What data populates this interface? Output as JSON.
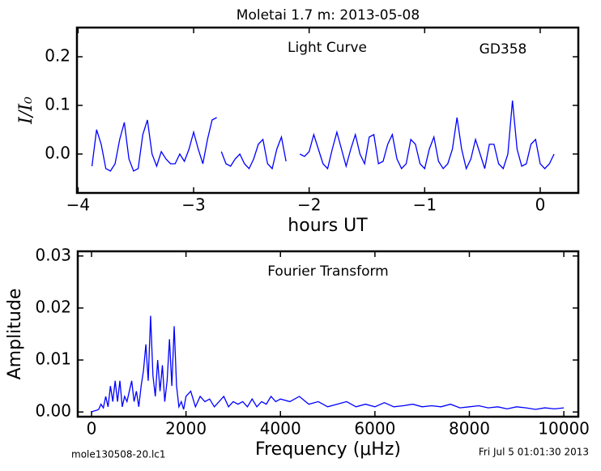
{
  "chart_data": [
    {
      "type": "line",
      "title": "Moletai 1.7 m:  2013-05-08",
      "xlabel": "hours UT",
      "ylabel": "I/I₀",
      "annotations": [
        "Light Curve",
        "GD358"
      ],
      "xlim": [
        -4.01,
        0.33
      ],
      "ylim": [
        -0.08,
        0.26
      ],
      "xticks": [
        {
          "value": -4,
          "label": "−4"
        },
        {
          "value": -3,
          "label": "−3"
        },
        {
          "value": -2,
          "label": "−2"
        },
        {
          "value": -1,
          "label": "−1"
        },
        0
      ],
      "yticks": [
        {
          "value": 0,
          "label": "0.0"
        },
        {
          "value": 0.1,
          "label": "0.1"
        },
        {
          "value": 0.2,
          "label": "0.2"
        }
      ],
      "x": [
        -3.88,
        -3.84,
        -3.8,
        -3.76,
        -3.72,
        -3.68,
        -3.64,
        -3.6,
        -3.56,
        -3.52,
        -3.48,
        -3.44,
        -3.4,
        -3.36,
        -3.32,
        -3.28,
        -3.24,
        -3.2,
        -3.16,
        -3.12,
        -3.08,
        -3.04,
        -3.0,
        -2.96,
        -2.92,
        -2.88,
        -2.84,
        -2.8,
        -2.78,
        -2.76,
        -2.72,
        -2.68,
        -2.64,
        -2.6,
        -2.56,
        -2.52,
        -2.48,
        -2.44,
        -2.4,
        -2.36,
        -2.32,
        -2.28,
        -2.24,
        -2.2,
        -2.16,
        -2.12,
        -2.08,
        -2.04,
        -2.0,
        -1.96,
        -1.92,
        -1.88,
        -1.84,
        -1.8,
        -1.76,
        -1.72,
        -1.68,
        -1.64,
        -1.6,
        -1.56,
        -1.52,
        -1.48,
        -1.44,
        -1.4,
        -1.36,
        -1.32,
        -1.28,
        -1.24,
        -1.2,
        -1.16,
        -1.12,
        -1.08,
        -1.04,
        -1.0,
        -0.96,
        -0.92,
        -0.88,
        -0.84,
        -0.8,
        -0.76,
        -0.72,
        -0.68,
        -0.64,
        -0.6,
        -0.56,
        -0.52,
        -0.48,
        -0.44,
        -0.4,
        -0.36,
        -0.32,
        -0.28,
        -0.24,
        -0.2,
        -0.16,
        -0.12,
        -0.08,
        -0.04,
        0.0,
        0.04,
        0.08,
        0.12
      ],
      "series": [
        {
          "name": "GD358",
          "color": "#0000ff",
          "values": [
            -0.025,
            0.05,
            0.02,
            -0.03,
            -0.035,
            -0.02,
            0.03,
            0.065,
            -0.01,
            -0.035,
            -0.03,
            0.04,
            0.07,
            0.0,
            -0.025,
            0.005,
            -0.01,
            -0.02,
            -0.02,
            0.0,
            -0.015,
            0.01,
            0.045,
            0.01,
            -0.02,
            0.03,
            0.07,
            0.075,
            null,
            0.005,
            -0.02,
            -0.025,
            -0.01,
            0.0,
            -0.02,
            -0.03,
            -0.01,
            0.02,
            0.03,
            -0.02,
            -0.03,
            0.01,
            0.035,
            -0.015,
            null,
            null,
            0.0,
            -0.005,
            0.005,
            0.04,
            0.01,
            -0.02,
            -0.03,
            0.01,
            0.045,
            0.01,
            -0.025,
            0.01,
            0.04,
            0.0,
            -0.02,
            0.035,
            0.04,
            -0.02,
            -0.015,
            0.02,
            0.04,
            -0.01,
            -0.03,
            -0.02,
            0.03,
            0.02,
            -0.02,
            -0.03,
            0.01,
            0.035,
            -0.015,
            -0.03,
            -0.02,
            0.01,
            0.075,
            0.01,
            -0.03,
            -0.01,
            0.03,
            0.0,
            -0.03,
            0.02,
            0.02,
            -0.02,
            -0.03,
            0.0,
            0.11,
            0.01,
            -0.025,
            -0.02,
            0.02,
            0.03,
            -0.02,
            -0.03,
            -0.02,
            0.0
          ]
        }
      ]
    },
    {
      "type": "line",
      "xlabel": "Frequency (μHz)",
      "ylabel": "Amplitude",
      "annotations": [
        "Fourier Transform"
      ],
      "xlim": [
        -292,
        10307
      ],
      "ylim": [
        -0.0009,
        0.0309
      ],
      "xticks": [
        0,
        2000,
        4000,
        6000,
        8000,
        10000
      ],
      "yticks": [
        {
          "value": 0,
          "label": "0.00"
        },
        {
          "value": 0.01,
          "label": "0.01"
        },
        {
          "value": 0.02,
          "label": "0.02"
        },
        {
          "value": 0.03,
          "label": "0.03"
        }
      ],
      "x": [
        0,
        50,
        100,
        150,
        200,
        250,
        300,
        350,
        400,
        450,
        500,
        550,
        600,
        650,
        700,
        750,
        800,
        850,
        900,
        950,
        1000,
        1050,
        1100,
        1150,
        1200,
        1250,
        1300,
        1350,
        1400,
        1450,
        1500,
        1550,
        1600,
        1650,
        1700,
        1750,
        1800,
        1850,
        1900,
        1950,
        2000,
        2100,
        2200,
        2300,
        2400,
        2500,
        2600,
        2700,
        2800,
        2900,
        3000,
        3100,
        3200,
        3300,
        3400,
        3500,
        3600,
        3700,
        3800,
        3900,
        4000,
        4200,
        4400,
        4600,
        4800,
        5000,
        5200,
        5400,
        5600,
        5800,
        6000,
        6200,
        6400,
        6600,
        6800,
        7000,
        7200,
        7400,
        7600,
        7800,
        8000,
        8200,
        8400,
        8600,
        8800,
        9000,
        9200,
        9400,
        9600,
        9800,
        10000
      ],
      "series": [
        {
          "name": "Amplitude",
          "color": "#0000ff",
          "values": [
            0.0,
            0.0002,
            0.0003,
            0.0005,
            0.0015,
            0.0008,
            0.003,
            0.001,
            0.005,
            0.002,
            0.006,
            0.002,
            0.006,
            0.001,
            0.003,
            0.002,
            0.004,
            0.006,
            0.002,
            0.004,
            0.001,
            0.005,
            0.008,
            0.013,
            0.006,
            0.0185,
            0.007,
            0.003,
            0.01,
            0.004,
            0.009,
            0.002,
            0.006,
            0.014,
            0.005,
            0.0165,
            0.005,
            0.001,
            0.002,
            0.0005,
            0.003,
            0.004,
            0.001,
            0.003,
            0.002,
            0.0025,
            0.001,
            0.002,
            0.003,
            0.001,
            0.002,
            0.0015,
            0.002,
            0.001,
            0.0025,
            0.001,
            0.002,
            0.0015,
            0.003,
            0.002,
            0.0025,
            0.002,
            0.003,
            0.0015,
            0.002,
            0.001,
            0.0015,
            0.002,
            0.001,
            0.0015,
            0.001,
            0.0018,
            0.001,
            0.0012,
            0.0015,
            0.001,
            0.0012,
            0.001,
            0.0015,
            0.0008,
            0.001,
            0.0012,
            0.0008,
            0.001,
            0.0006,
            0.001,
            0.0008,
            0.0005,
            0.0008,
            0.0006,
            0.0008
          ]
        }
      ]
    }
  ],
  "footer": {
    "left": "mole130508-20.lc1",
    "right": "Fri Jul  5 01:01:30 2013"
  }
}
